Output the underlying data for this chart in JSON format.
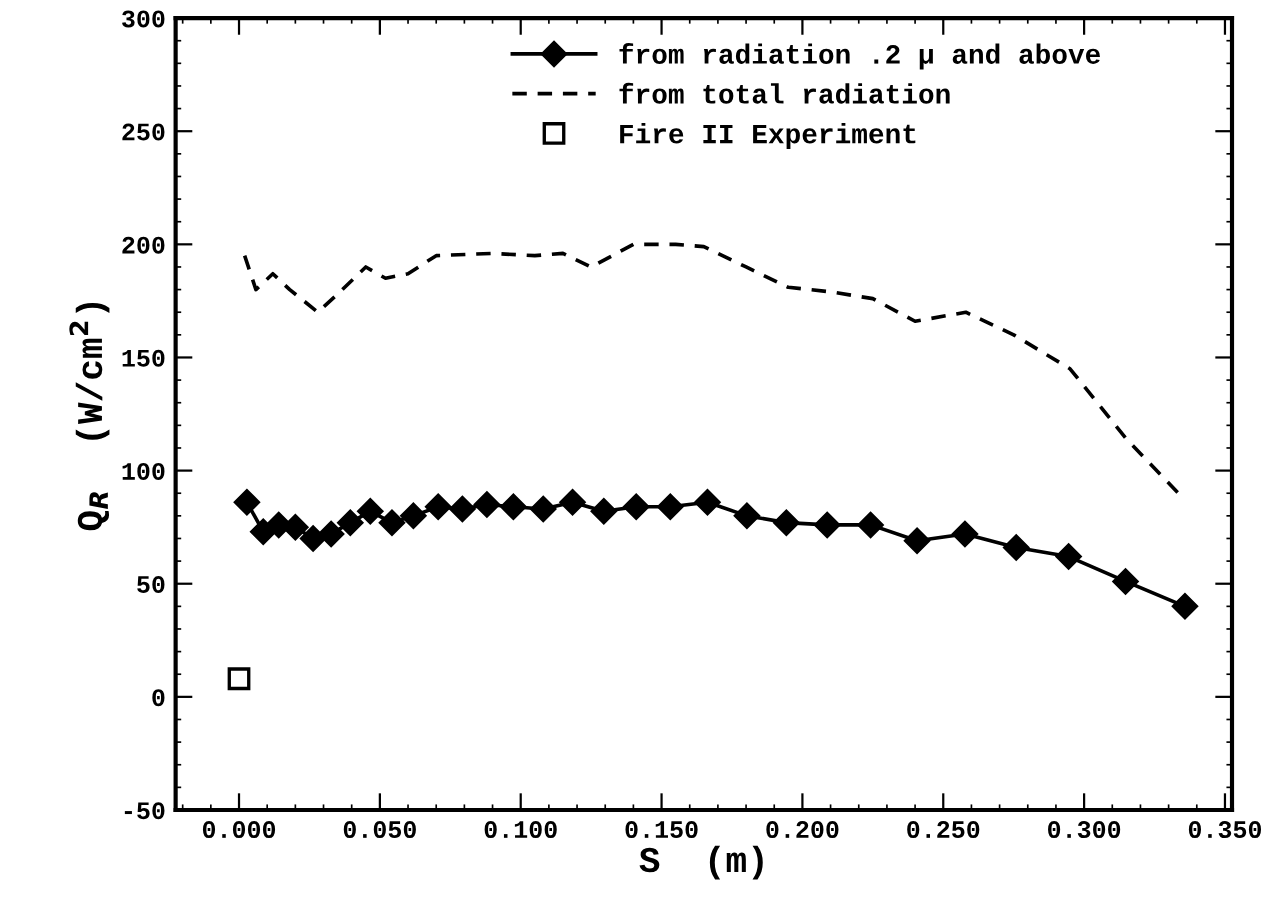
{
  "chart_data": {
    "type": "line",
    "xlabel": "S  (m)",
    "ylabel": "Q$_{R}$  (W/cm$^{2}$)",
    "xlim": [
      -0.0225,
      0.3525
    ],
    "xticks": [
      {
        "value": 0,
        "label": "0.000"
      },
      {
        "value": 0.05,
        "label": "0.050"
      },
      {
        "value": 0.1,
        "label": "0.100"
      },
      {
        "value": 0.15,
        "label": "0.150"
      },
      {
        "value": 0.2,
        "label": "0.200"
      },
      {
        "value": 0.25,
        "label": "0.250"
      },
      {
        "value": 0.3,
        "label": "0.300"
      },
      {
        "value": 0.35,
        "label": "0.350"
      }
    ],
    "ylim": [
      -50,
      300
    ],
    "yticks": [
      -50,
      0,
      50,
      100,
      150,
      200,
      250,
      300
    ],
    "grid": false,
    "legend": "top right",
    "series": [
      {
        "name": "from radiation .2 μ and above",
        "color": "#000000",
        "marker": "diamond",
        "line_style": "solid",
        "x": [
          0.0028,
          0.0086,
          0.0141,
          0.02,
          0.0263,
          0.0327,
          0.0395,
          0.0466,
          0.0543,
          0.0619,
          0.0707,
          0.0793,
          0.088,
          0.0974,
          0.108,
          0.1184,
          0.1295,
          0.141,
          0.1531,
          0.1663,
          0.1803,
          0.1943,
          0.2088,
          0.2242,
          0.2407,
          0.2577,
          0.2759,
          0.2945,
          0.3147,
          0.3358
        ],
        "values": [
          86,
          73,
          76,
          75,
          70,
          72,
          77,
          82,
          77,
          80,
          84,
          83,
          85,
          84,
          83,
          86,
          82,
          84,
          84,
          86,
          80,
          77,
          76,
          76,
          69,
          72,
          66,
          62,
          51,
          40
        ]
      },
      {
        "name": "from total radiation",
        "color": "#000000",
        "marker": "none",
        "line_style": "dashed",
        "x": [
          0.002,
          0.006,
          0.012,
          0.018,
          0.028,
          0.035,
          0.045,
          0.052,
          0.06,
          0.07,
          0.09,
          0.105,
          0.115,
          0.125,
          0.14,
          0.155,
          0.165,
          0.18,
          0.195,
          0.21,
          0.225,
          0.24,
          0.258,
          0.275,
          0.295,
          0.315,
          0.335
        ],
        "values": [
          195,
          180,
          187,
          180,
          170,
          178,
          190,
          185,
          187,
          195,
          196,
          195,
          196,
          190,
          200,
          200,
          199,
          190,
          181,
          179,
          176,
          166,
          170,
          160,
          145,
          114,
          88
        ]
      },
      {
        "name": "Fire II Experiment",
        "type": "scatter",
        "color": "#000000",
        "marker": "square",
        "x": [
          0.0
        ],
        "values": [
          8
        ]
      }
    ]
  }
}
